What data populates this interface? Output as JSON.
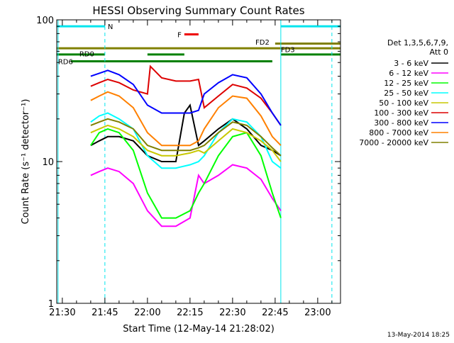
{
  "chart_data": {
    "type": "line",
    "title": "HESSI Observing Summary Count Rates",
    "xlabel": "Start Time (12-May-14 21:28:02)",
    "ylabel": "Count Rate (s⁻¹ detector⁻¹)",
    "x_ticks": [
      "21:30",
      "21:45",
      "22:00",
      "22:15",
      "22:30",
      "22:45",
      "23:00"
    ],
    "y_ticks": [
      {
        "label": "1",
        "value": 1
      },
      {
        "label": "10",
        "value": 10
      },
      {
        "label": "100",
        "value": 100
      }
    ],
    "x_range": [
      "21:28:02",
      "23:08:02"
    ],
    "ylim": [
      1,
      100
    ],
    "y_scale": "log",
    "legend_title": "Det 1,3,5,6,7,9,\nAtt 0",
    "series": [
      {
        "name": "3 - 6 keV",
        "color": "#000000",
        "x": [
          "21:40",
          "21:43",
          "21:46",
          "21:50",
          "21:55",
          "22:00",
          "22:05",
          "22:10",
          "22:13",
          "22:15",
          "22:18",
          "22:20",
          "22:25",
          "22:30",
          "22:35",
          "22:40",
          "22:44",
          "22:47"
        ],
        "y": [
          13,
          14,
          15,
          15,
          14,
          11,
          10,
          10,
          22,
          25,
          13,
          14,
          17,
          20,
          17,
          13,
          12,
          11
        ]
      },
      {
        "name": "6 - 12 keV",
        "color": "#ff00ff",
        "x": [
          "21:40",
          "21:43",
          "21:46",
          "21:50",
          "21:55",
          "22:00",
          "22:05",
          "22:10",
          "22:15",
          "22:18",
          "22:20",
          "22:25",
          "22:30",
          "22:35",
          "22:40",
          "22:44",
          "22:47"
        ],
        "y": [
          8,
          8.5,
          9,
          8.5,
          7,
          4.5,
          3.5,
          3.5,
          4,
          8,
          7,
          8,
          9.5,
          9,
          7.5,
          5.5,
          4.5
        ]
      },
      {
        "name": "12 - 25 keV",
        "color": "#00ff00",
        "x": [
          "21:40",
          "21:43",
          "21:46",
          "21:50",
          "21:55",
          "22:00",
          "22:05",
          "22:10",
          "22:15",
          "22:18",
          "22:20",
          "22:25",
          "22:30",
          "22:35",
          "22:40",
          "22:44",
          "22:47"
        ],
        "y": [
          13,
          16,
          17,
          16,
          12,
          6,
          4,
          4,
          4.5,
          6,
          7,
          11,
          15,
          16,
          11,
          6,
          4
        ]
      },
      {
        "name": "25 - 50 keV",
        "color": "#00ffff",
        "x": [
          "21:40",
          "21:43",
          "21:46",
          "21:50",
          "21:55",
          "22:00",
          "22:05",
          "22:10",
          "22:15",
          "22:18",
          "22:20",
          "22:25",
          "22:30",
          "22:35",
          "22:40",
          "22:44",
          "22:47"
        ],
        "y": [
          19,
          21,
          22,
          20,
          17,
          11,
          9,
          9,
          9.5,
          10,
          11,
          16,
          20,
          19,
          15,
          10,
          9
        ]
      },
      {
        "name": "50 - 100 keV",
        "color": "#c8c800",
        "x": [
          "21:40",
          "21:43",
          "21:46",
          "21:50",
          "21:55",
          "22:00",
          "22:05",
          "22:10",
          "22:15",
          "22:18",
          "22:20",
          "22:25",
          "22:30",
          "22:35",
          "22:40",
          "22:44",
          "22:47"
        ],
        "y": [
          16,
          17,
          18,
          17,
          15,
          12,
          11,
          11,
          11.5,
          12,
          11.5,
          14,
          17,
          16,
          14,
          12,
          10
        ]
      },
      {
        "name": "100 - 300 keV",
        "color": "#dd0000",
        "x": [
          "21:40",
          "21:43",
          "21:46",
          "21:50",
          "21:55",
          "22:00",
          "22:01",
          "22:05",
          "22:10",
          "22:15",
          "22:18",
          "22:20",
          "22:25",
          "22:30",
          "22:35",
          "22:40",
          "22:44",
          "22:47"
        ],
        "y": [
          34,
          36,
          38,
          36,
          32,
          30,
          47,
          39,
          37,
          37,
          38,
          24,
          29,
          35,
          33,
          28,
          22,
          18
        ]
      },
      {
        "name": "300 - 800 keV",
        "color": "#0000ff",
        "x": [
          "21:40",
          "21:43",
          "21:46",
          "21:50",
          "21:55",
          "22:00",
          "22:05",
          "22:10",
          "22:15",
          "22:18",
          "22:20",
          "22:25",
          "22:30",
          "22:35",
          "22:40",
          "22:44",
          "22:47"
        ],
        "y": [
          40,
          42,
          44,
          41,
          35,
          25,
          22,
          22,
          22,
          23,
          30,
          36,
          41,
          39,
          30,
          22,
          18
        ]
      },
      {
        "name": "800 - 7000 keV",
        "color": "#ff8000",
        "x": [
          "21:40",
          "21:43",
          "21:46",
          "21:50",
          "21:55",
          "22:00",
          "22:05",
          "22:10",
          "22:15",
          "22:18",
          "22:20",
          "22:25",
          "22:30",
          "22:35",
          "22:40",
          "22:44",
          "22:47"
        ],
        "y": [
          27,
          29,
          31,
          29,
          24,
          16,
          13,
          13,
          13,
          14,
          17,
          24,
          29,
          28,
          21,
          15,
          13
        ]
      },
      {
        "name": "7000 - 20000 keV",
        "color": "#808000",
        "x": [
          "21:40",
          "21:43",
          "21:46",
          "21:50",
          "21:55",
          "22:00",
          "22:05",
          "22:10",
          "22:15",
          "22:18",
          "22:20",
          "22:25",
          "22:30",
          "22:35",
          "22:40",
          "22:44",
          "22:47"
        ],
        "y": [
          18,
          19,
          20,
          19,
          17,
          13,
          12,
          12,
          12,
          12.5,
          13,
          16,
          19,
          18,
          15,
          12.5,
          11
        ]
      }
    ],
    "flag_bars": [
      {
        "label": "N",
        "color": "#00e5ee",
        "y": 90,
        "segments": [
          [
            "21:28:02",
            "21:45"
          ],
          [
            "22:47",
            "23:08:02"
          ]
        ]
      },
      {
        "label": "F",
        "color": "#ee0000",
        "y": 79,
        "segments": [
          [
            "22:13",
            "22:18"
          ]
        ]
      },
      {
        "label": "FD2",
        "color": "#808000",
        "y": 68,
        "segments": [
          [
            "22:45",
            "23:08:02"
          ]
        ]
      },
      {
        "label": "FD3",
        "color": "#808000",
        "y": 63,
        "segments": [
          [
            "21:28:02",
            "23:08:02"
          ]
        ]
      },
      {
        "label": "RD0",
        "color": "#008000",
        "y": 57,
        "segments": [
          [
            "21:28:02",
            "21:45"
          ],
          [
            "22:00",
            "22:13"
          ],
          [
            "22:47",
            "23:08:02"
          ]
        ]
      },
      {
        "label": "RD6",
        "color": "#008000",
        "y": 51,
        "segments": [
          [
            "21:33",
            "22:44"
          ]
        ]
      }
    ],
    "grid": false
  },
  "timestamp": "13-May-2014 18:25"
}
